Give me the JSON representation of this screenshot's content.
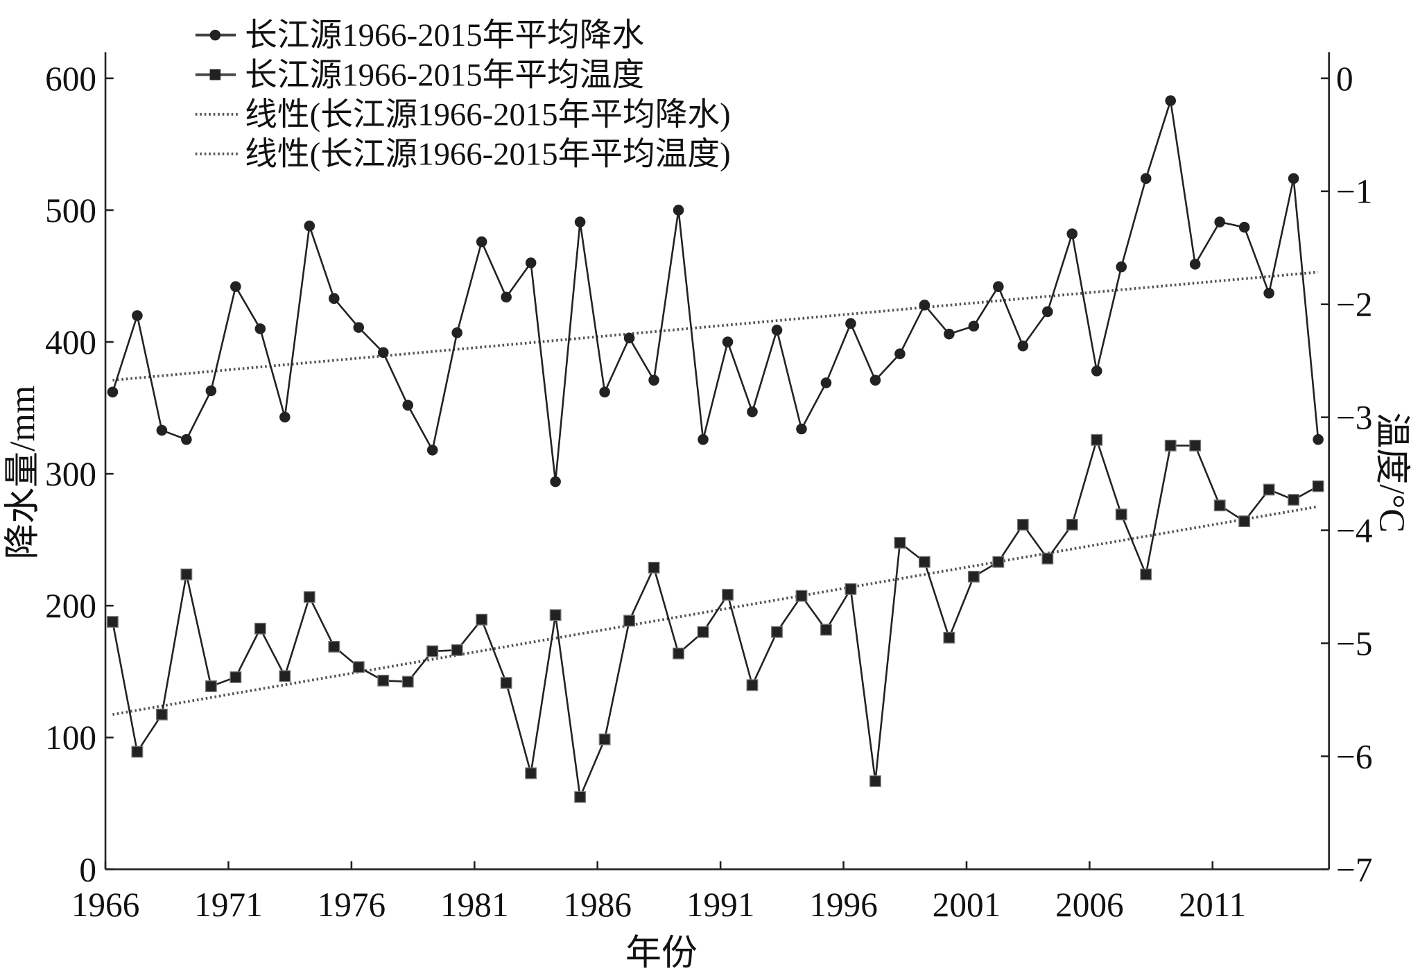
{
  "chart_data": {
    "type": "line",
    "title": "",
    "xlabel": "年份",
    "ylabel": "降水量/mm",
    "y2label": "温度/°C",
    "ylim": [
      0,
      600
    ],
    "y2lim": [
      -7,
      0
    ],
    "grid": false,
    "legend_position": "top-left",
    "x": [
      1966,
      1967,
      1968,
      1969,
      1970,
      1971,
      1972,
      1973,
      1974,
      1975,
      1976,
      1977,
      1978,
      1979,
      1980,
      1981,
      1982,
      1983,
      1984,
      1985,
      1986,
      1987,
      1988,
      1989,
      1990,
      1991,
      1992,
      1993,
      1994,
      1995,
      1996,
      1997,
      1998,
      1999,
      2000,
      2001,
      2002,
      2003,
      2004,
      2005,
      2006,
      2007,
      2008,
      2009,
      2010,
      2011,
      2012,
      2013,
      2014,
      2015
    ],
    "x_ticks": [
      "1966",
      "1971",
      "1976",
      "1981",
      "1986",
      "1991",
      "1996",
      "2001",
      "2006",
      "2011"
    ],
    "y_ticks": [
      "0",
      "100",
      "200",
      "300",
      "400",
      "500",
      "600"
    ],
    "y2_ticks": [
      "0",
      "−1",
      "−2",
      "−3",
      "−4",
      "−5",
      "−6",
      "−7"
    ],
    "series": [
      {
        "name": "长江源1966-2015年平均降水",
        "axis": "left",
        "marker": "circle",
        "values": [
          362,
          420,
          333,
          326,
          363,
          442,
          410,
          343,
          488,
          433,
          411,
          392,
          352,
          318,
          407,
          476,
          434,
          460,
          294,
          491,
          362,
          403,
          371,
          500,
          326,
          400,
          347,
          409,
          334,
          369,
          414,
          371,
          391,
          428,
          406,
          412,
          442,
          397,
          423,
          482,
          378,
          457,
          524,
          583,
          459,
          491,
          487,
          437,
          524,
          326
        ]
      },
      {
        "name": "长江源1966-2015年平均温度",
        "axis": "right",
        "marker": "square",
        "values": [
          -4.81,
          -5.96,
          -5.63,
          -4.39,
          -5.38,
          -5.3,
          -4.87,
          -5.29,
          -4.59,
          -5.03,
          -5.21,
          -5.33,
          -5.34,
          -5.07,
          -5.06,
          -4.79,
          -5.35,
          -6.15,
          -4.75,
          -6.36,
          -5.85,
          -4.8,
          -4.33,
          -5.09,
          -4.9,
          -4.57,
          -5.37,
          -4.9,
          -4.58,
          -4.88,
          -4.52,
          -6.22,
          -4.11,
          -4.28,
          -4.95,
          -4.41,
          -4.28,
          -3.95,
          -4.25,
          -3.95,
          -3.2,
          -3.86,
          -4.39,
          -3.25,
          -3.25,
          -3.78,
          -3.92,
          -3.64,
          -3.73,
          -3.61
        ]
      }
    ],
    "trendlines": [
      {
        "name": "线性(长江源1966-2015年平均降水)",
        "axis": "left",
        "start": 371,
        "end": 453
      },
      {
        "name": "线性(长江源1966-2015年平均温度)",
        "axis": "right",
        "start": -5.63,
        "end": -3.79
      }
    ]
  },
  "colors": {
    "line": "#222222",
    "trend": "#555555"
  }
}
